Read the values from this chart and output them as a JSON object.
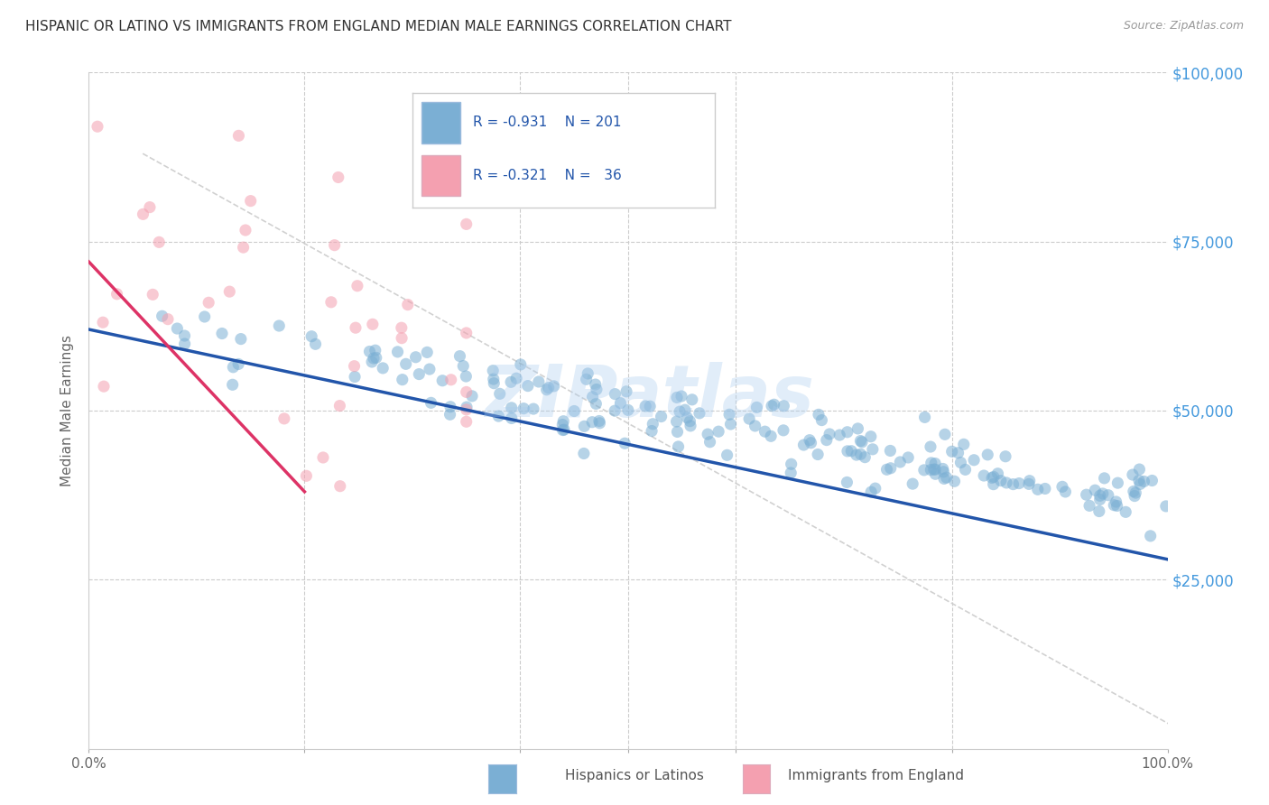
{
  "title": "HISPANIC OR LATINO VS IMMIGRANTS FROM ENGLAND MEDIAN MALE EARNINGS CORRELATION CHART",
  "source": "Source: ZipAtlas.com",
  "ylabel": "Median Male Earnings",
  "x_min": 0.0,
  "x_max": 1.0,
  "y_min": 0,
  "y_max": 100000,
  "y_ticks": [
    0,
    25000,
    50000,
    75000,
    100000
  ],
  "y_tick_labels": [
    "",
    "$25,000",
    "$50,000",
    "$75,000",
    "$100,000"
  ],
  "blue_R": -0.931,
  "blue_N": 201,
  "pink_R": -0.321,
  "pink_N": 36,
  "blue_color": "#7BAFD4",
  "pink_color": "#F4A0B0",
  "blue_line_color": "#2255AA",
  "pink_line_color": "#DD3366",
  "scatter_alpha": 0.55,
  "scatter_size": 90,
  "background_color": "#FFFFFF",
  "grid_color": "#CCCCCC",
  "title_fontsize": 11,
  "axis_label_color": "#666666",
  "right_label_color": "#4499DD",
  "watermark_color": "#AACCEE",
  "watermark_text": "ZIPatlas",
  "legend_label1": "Hispanics or Latinos",
  "legend_label2": "Immigrants from England"
}
